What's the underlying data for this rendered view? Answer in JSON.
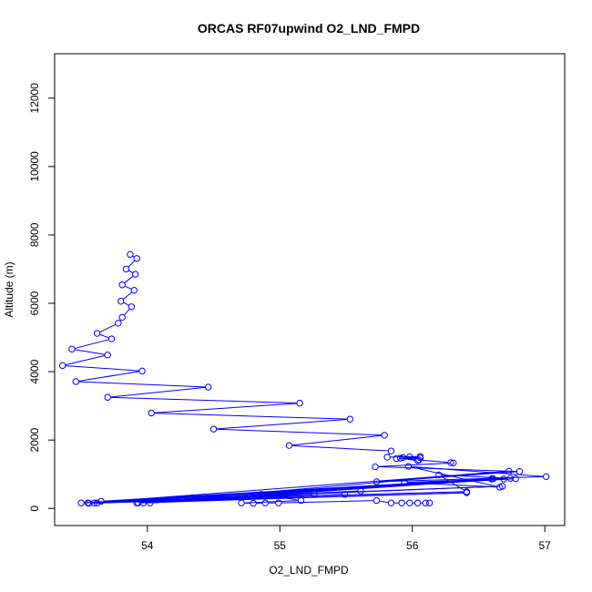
{
  "chart_data": {
    "type": "line",
    "title": "ORCAS RF07upwind O2_LND_FMPD",
    "xlabel": "O2_LND_FMPD",
    "ylabel": "Altitude (m)",
    "xlim": [
      53.3,
      57.15
    ],
    "ylim": [
      -500,
      13300
    ],
    "xticks": [
      54,
      55,
      56,
      57
    ],
    "yticks": [
      0,
      2000,
      4000,
      6000,
      8000,
      10000,
      12000
    ],
    "grid": false,
    "legend": "none",
    "colors": {
      "series": "#0000ff",
      "axis": "#000000",
      "background": "#ffffff"
    },
    "series": [
      {
        "marker": "open-circle",
        "line": "solid",
        "points": [
          [
            53.87,
            7430
          ],
          [
            53.92,
            7310
          ],
          [
            53.84,
            7000
          ],
          [
            53.91,
            6850
          ],
          [
            53.81,
            6540
          ],
          [
            53.9,
            6380
          ],
          [
            53.8,
            6060
          ],
          [
            53.88,
            5900
          ],
          [
            53.81,
            5590
          ],
          [
            53.78,
            5420
          ],
          [
            53.62,
            5120
          ],
          [
            53.73,
            4960
          ],
          [
            53.43,
            4660
          ],
          [
            53.7,
            4490
          ],
          [
            53.36,
            4180
          ],
          [
            53.96,
            4020
          ],
          [
            53.46,
            3710
          ],
          [
            54.46,
            3550
          ],
          [
            53.7,
            3250
          ],
          [
            55.15,
            3080
          ],
          [
            54.03,
            2790
          ],
          [
            55.53,
            2610
          ],
          [
            54.5,
            2320
          ],
          [
            55.79,
            2140
          ],
          [
            55.07,
            1840
          ],
          [
            55.84,
            1680
          ],
          [
            55.81,
            1500
          ],
          [
            56.06,
            1520
          ],
          [
            55.88,
            1460
          ],
          [
            56.06,
            1480
          ],
          [
            55.93,
            1490
          ],
          [
            55.98,
            1510
          ],
          [
            56.04,
            1400
          ],
          [
            55.91,
            1470
          ],
          [
            56.05,
            1420
          ],
          [
            56.29,
            1340
          ],
          [
            56.31,
            1330
          ],
          [
            55.72,
            1220
          ],
          [
            56.81,
            1080
          ],
          [
            55.73,
            780
          ],
          [
            57.01,
            930
          ],
          [
            55.97,
            1230
          ],
          [
            56.66,
            620
          ],
          [
            55.94,
            760
          ],
          [
            56.74,
            880
          ],
          [
            56.2,
            980
          ],
          [
            56.41,
            490
          ],
          [
            53.65,
            210
          ],
          [
            56.6,
            870
          ],
          [
            54.34,
            310
          ],
          [
            56.68,
            650
          ],
          [
            53.5,
            160
          ],
          [
            56.78,
            870
          ],
          [
            53.6,
            160
          ],
          [
            56.6,
            860
          ],
          [
            53.55,
            160
          ],
          [
            56.73,
            1090
          ],
          [
            53.93,
            160
          ],
          [
            56.41,
            460
          ],
          [
            53.56,
            150
          ],
          [
            56.69,
            860
          ],
          [
            54.02,
            160
          ],
          [
            56.61,
            870
          ],
          [
            53.92,
            160
          ],
          [
            55.61,
            510
          ],
          [
            53.62,
            160
          ],
          [
            55.49,
            410
          ],
          [
            53.97,
            160
          ],
          [
            55.26,
            420
          ],
          [
            54.86,
            410
          ],
          [
            55.16,
            230
          ],
          [
            54.71,
            160
          ],
          [
            54.8,
            150
          ],
          [
            54.89,
            160
          ],
          [
            54.99,
            160
          ],
          [
            55.73,
            230
          ],
          [
            55.84,
            160
          ],
          [
            55.92,
            160
          ],
          [
            55.98,
            160
          ],
          [
            56.04,
            160
          ],
          [
            56.1,
            160
          ],
          [
            56.13,
            160
          ]
        ]
      }
    ]
  }
}
